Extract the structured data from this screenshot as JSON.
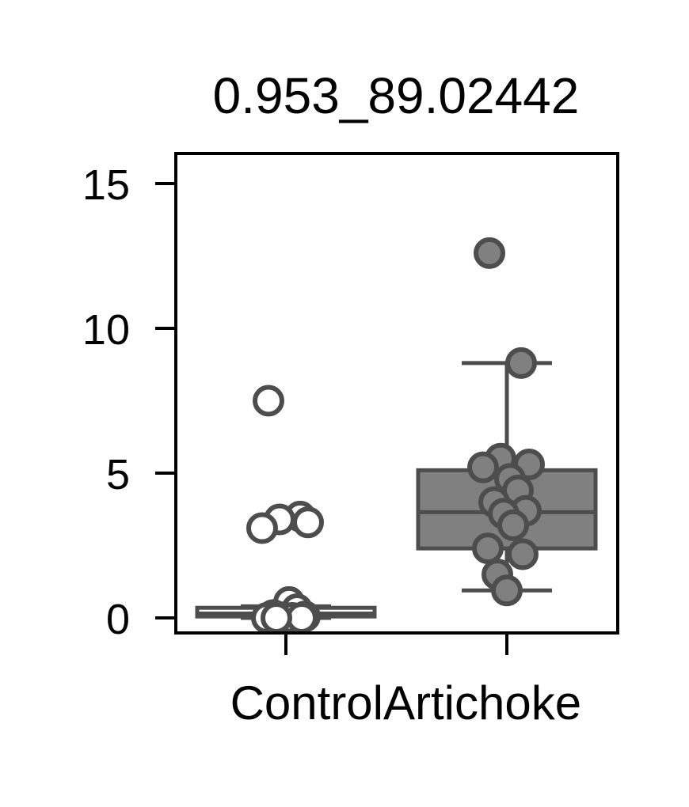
{
  "chart_data": {
    "type": "box",
    "title": "0.953_89.02442",
    "xlabel": "",
    "ylabel": "",
    "categories": [
      "Control",
      "Artichoke"
    ],
    "ylim": [
      -0.5,
      16
    ],
    "yticks": [
      0,
      5,
      10,
      15
    ],
    "grid": false,
    "legend": "none",
    "colors": {
      "Control": "#ffffff",
      "Artichoke": "#808080",
      "edge": "#4d4d4d"
    },
    "boxes": [
      {
        "category": "Control",
        "q1": 0.05,
        "median": 0.15,
        "q3": 0.35,
        "whisker_low": 0.0,
        "whisker_high": 0.4
      },
      {
        "category": "Artichoke",
        "q1": 2.4,
        "median": 3.65,
        "q3": 5.1,
        "whisker_low": 0.95,
        "whisker_high": 8.8
      }
    ],
    "points": [
      {
        "category": "Control",
        "values": [
          7.5,
          3.5,
          3.4,
          3.3,
          3.1,
          0.55,
          0.3,
          0.1,
          0.05,
          0.02,
          0.0,
          0.0,
          0.0,
          0.0
        ]
      },
      {
        "category": "Artichoke",
        "values": [
          12.6,
          8.8,
          5.5,
          5.3,
          5.2,
          4.8,
          4.4,
          4.0,
          3.7,
          3.6,
          3.2,
          2.4,
          2.2,
          1.5,
          0.95
        ]
      }
    ]
  }
}
